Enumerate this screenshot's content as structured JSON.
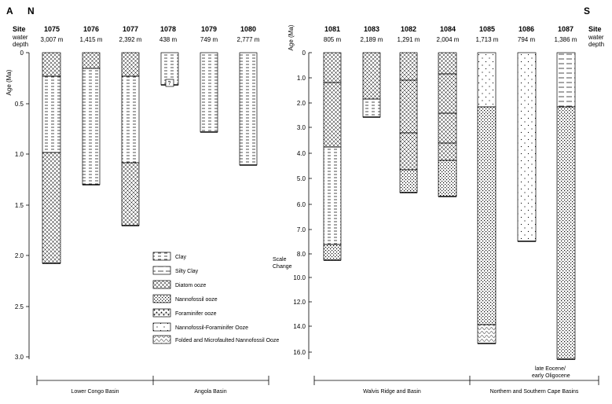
{
  "panel_label": "A",
  "direction_left": "N",
  "direction_right": "S",
  "left_header": {
    "site": "Site",
    "water": "water",
    "depth": "depth"
  },
  "right_header": {
    "site": "Site",
    "water": "water",
    "depth": "depth"
  },
  "left_axis": {
    "label": "Age (Ma)",
    "ticks": [
      "0",
      "0.5",
      "1.0",
      "1.5",
      "2.0",
      "2.5",
      "3.0"
    ]
  },
  "right_axis": {
    "label": "Age (Ma)",
    "ticks": [
      "0",
      "1.0",
      "2.0",
      "3.0",
      "4.0",
      "5.0",
      "6.0",
      "7.0",
      "8.0",
      "10.0",
      "12.0",
      "14.0",
      "16.0"
    ]
  },
  "scale_change": {
    "line1": "Scale",
    "line2": "Change"
  },
  "sites": [
    {
      "id": "1075",
      "depth": "3,007 m"
    },
    {
      "id": "1076",
      "depth": "1,415 m"
    },
    {
      "id": "1077",
      "depth": "2,392 m"
    },
    {
      "id": "1078",
      "depth": "438 m"
    },
    {
      "id": "1079",
      "depth": "749 m"
    },
    {
      "id": "1080",
      "depth": "2,777 m"
    },
    {
      "id": "1081",
      "depth": "805 m"
    },
    {
      "id": "1083",
      "depth": "2,189 m"
    },
    {
      "id": "1082",
      "depth": "1,291 m"
    },
    {
      "id": "1084",
      "depth": "2,004 m"
    },
    {
      "id": "1085",
      "depth": "1,713 m"
    },
    {
      "id": "1086",
      "depth": "794 m"
    },
    {
      "id": "1087",
      "depth": "1,386 m"
    }
  ],
  "column_1078_mark": "?",
  "column_1087_note": {
    "line1": "late Eocene/",
    "line2": "early Oligocene"
  },
  "legend": [
    {
      "key": "clay",
      "label": "Clay"
    },
    {
      "key": "silty",
      "label": "Silty Clay"
    },
    {
      "key": "diatom",
      "label": "Diatom ooze"
    },
    {
      "key": "nanno",
      "label": "Nannofossil ooze"
    },
    {
      "key": "foram",
      "label": "Foraminifer ooze"
    },
    {
      "key": "nannoforam",
      "label": "Nannofossil-Foraminifer Ooze"
    },
    {
      "key": "folded",
      "label": "Folded and Microfaulted Nannofossil Ooze"
    }
  ],
  "basins": {
    "lower_congo": "Lower Congo Basin",
    "angola": "Angola Basin",
    "walvis": "Walvis Ridge and Basin",
    "cape": "Northern and Southern Cape Basins"
  }
}
